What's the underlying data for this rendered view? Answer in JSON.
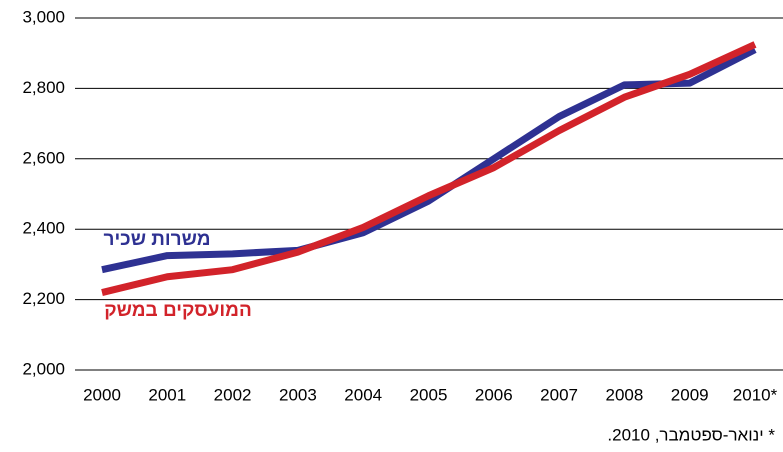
{
  "chart_data": {
    "type": "line",
    "categories": [
      "2000",
      "2001",
      "2002",
      "2003",
      "2004",
      "2005",
      "2006",
      "2007",
      "2008",
      "2009",
      "2010*"
    ],
    "series": [
      {
        "name": "משרות שכיר",
        "color": "#2e3192",
        "values": [
          2285,
          2325,
          2330,
          2340,
          2390,
          2480,
          2600,
          2720,
          2810,
          2815,
          2910
        ]
      },
      {
        "name": "המועסקים במשק",
        "color": "#d2232a",
        "values": [
          2220,
          2265,
          2285,
          2335,
          2405,
          2495,
          2575,
          2680,
          2775,
          2840,
          2925
        ]
      }
    ],
    "ylim": [
      2000,
      3000
    ],
    "yticks": [
      {
        "value": 2000,
        "label": "2,000"
      },
      {
        "value": 2200,
        "label": "2,200"
      },
      {
        "value": 2400,
        "label": "2,400"
      },
      {
        "value": 2600,
        "label": "2,600"
      },
      {
        "value": 2800,
        "label": "2,800"
      },
      {
        "value": 3000,
        "label": "3,000"
      }
    ],
    "grid": true,
    "note": "* ינואר-ספטמבר, 2010."
  }
}
